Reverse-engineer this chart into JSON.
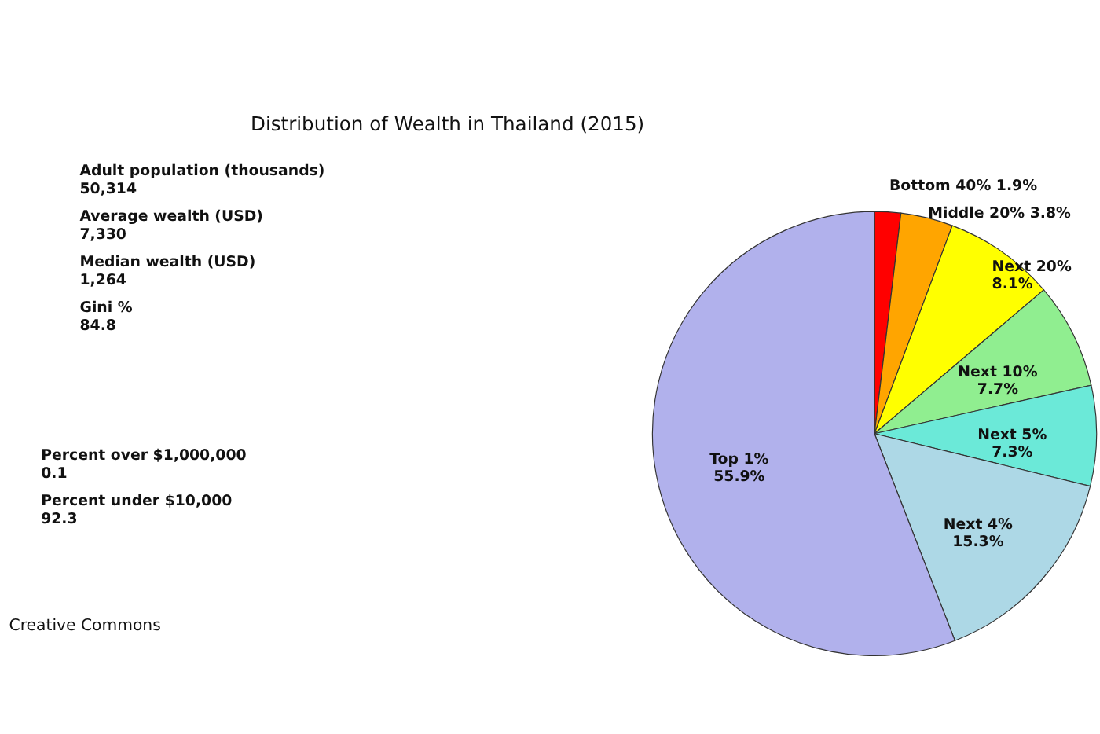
{
  "chart_data": {
    "type": "pie",
    "title": "Distribution of Wealth in Thailand (2015)",
    "categories": [
      "Bottom 40%",
      "Middle 20%",
      "Next 20%",
      "Next 10%",
      "Next 5%",
      "Next 4%",
      "Top 1%"
    ],
    "values": [
      1.9,
      3.8,
      8.1,
      7.7,
      7.3,
      15.3,
      55.9
    ],
    "colors": [
      "#ff0000",
      "#ffa500",
      "#ffff00",
      "#90ee90",
      "#6be9d8",
      "#add8e6",
      "#b1b1ec"
    ],
    "value_labels": [
      "1.9%",
      "3.8%",
      "8.1%",
      "7.7%",
      "7.3%",
      "15.3%",
      "55.9%"
    ],
    "annotations": [
      "Adult population (thousands)\n50,314",
      "Average wealth (USD)\n7,330",
      "Median wealth (USD)\n1,264",
      "Gini %\n84.8",
      "Percent over $1,000,000\n0.1",
      "Percent under $10,000\n92.3",
      "Creative Commons"
    ]
  }
}
